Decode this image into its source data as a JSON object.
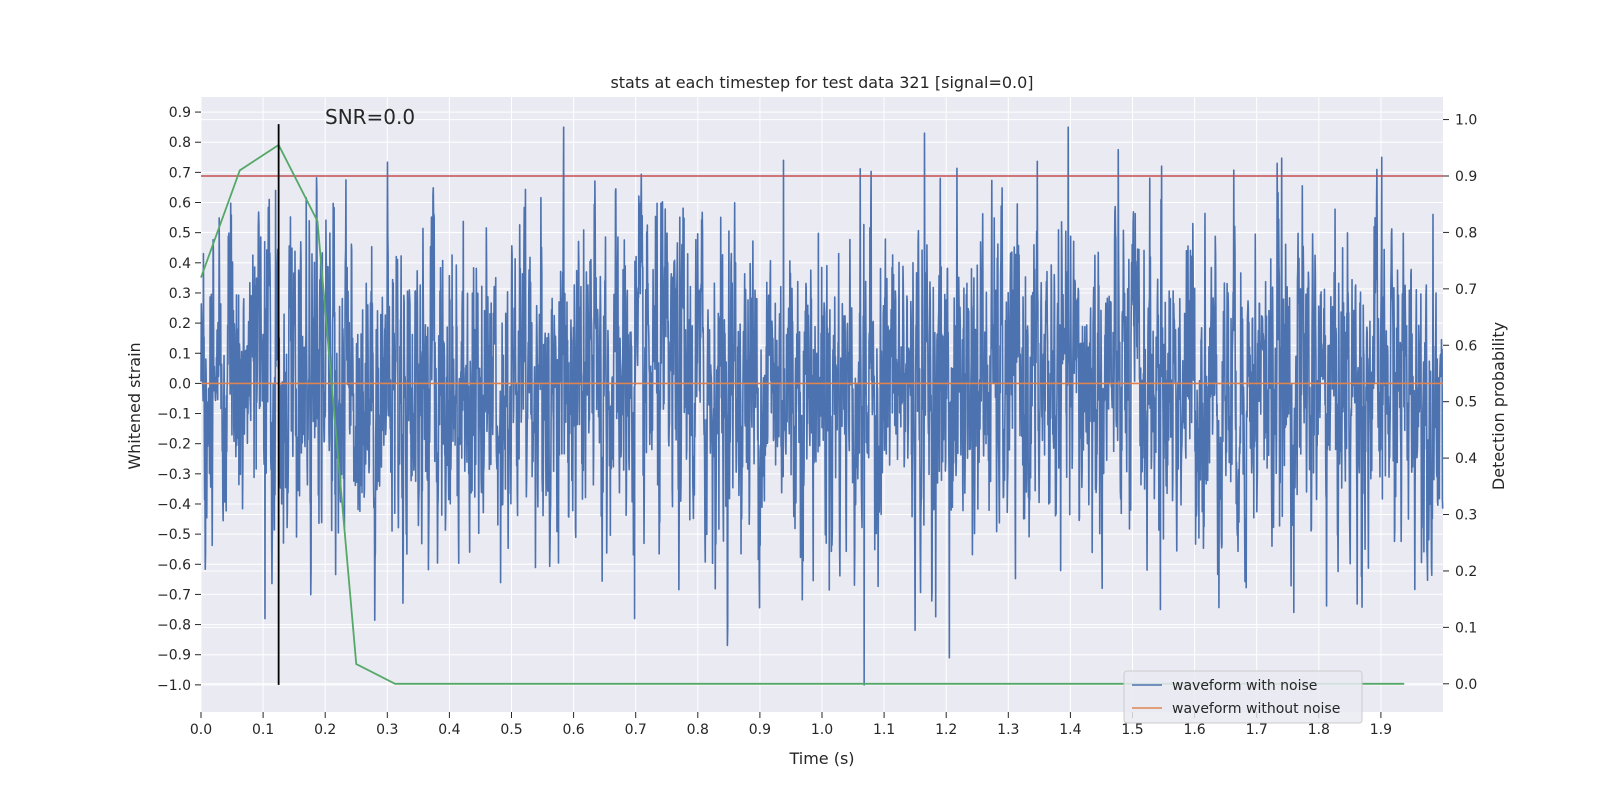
{
  "chart_data": {
    "type": "line",
    "title": "stats at each timestep for test data 321 [signal=0.0]",
    "xlabel": "Time (s)",
    "ylabel_left": "Whitened strain",
    "ylabel_right": "Detection probability",
    "annotation": "SNR=0.0",
    "xlim": [
      0.0,
      2.0
    ],
    "ylim_left": [
      -1.09,
      0.95
    ],
    "ylim_right": [
      -0.05,
      1.04
    ],
    "x_ticks": [
      0.0,
      0.1,
      0.2,
      0.3,
      0.4,
      0.5,
      0.6,
      0.7,
      0.8,
      0.9,
      1.0,
      1.1,
      1.2,
      1.3,
      1.4,
      1.5,
      1.6,
      1.7,
      1.8,
      1.9
    ],
    "x_tick_labels": [
      "0.0",
      "0.1",
      "0.2",
      "0.3",
      "0.4",
      "0.5",
      "0.6",
      "0.7",
      "0.8",
      "0.9",
      "1.0",
      "1.1",
      "1.2",
      "1.3",
      "1.4",
      "1.5",
      "1.6",
      "1.7",
      "1.8",
      "1.9"
    ],
    "y_left_ticks": [
      0.9,
      0.8,
      0.7,
      0.6,
      0.5,
      0.4,
      0.3,
      0.2,
      0.1,
      0.0,
      -0.1,
      -0.2,
      -0.3,
      -0.4,
      -0.5,
      -0.6,
      -0.7,
      -0.8,
      -0.9,
      -1.0
    ],
    "y_left_tick_labels": [
      "0.9",
      "0.8",
      "0.7",
      "0.6",
      "0.5",
      "0.4",
      "0.3",
      "0.2",
      "0.1",
      "0.0",
      "−0.1",
      "−0.2",
      "−0.3",
      "−0.4",
      "−0.5",
      "−0.6",
      "−0.7",
      "−0.8",
      "−0.9",
      "−1.0"
    ],
    "y_right_ticks": [
      1.0,
      0.9,
      0.8,
      0.7,
      0.6,
      0.5,
      0.4,
      0.3,
      0.2,
      0.1,
      0.0
    ],
    "y_right_tick_labels": [
      "1.0",
      "0.9",
      "0.8",
      "0.7",
      "0.6",
      "0.5",
      "0.4",
      "0.3",
      "0.2",
      "0.1",
      "0.0"
    ],
    "grid": true,
    "legend_position": "lower-right",
    "series": [
      {
        "name": "waveform with noise",
        "axis": "left",
        "color": "#4c72b0",
        "sample_rate_hz": 2048,
        "amplitude_range": [
          -1.0,
          0.85
        ],
        "peaks": [
          {
            "x": 0.584,
            "y": 0.85
          },
          {
            "x": 1.165,
            "y": 0.83
          },
          {
            "x": 0.938,
            "y": 0.74
          },
          {
            "x": 1.733,
            "y": 0.73
          },
          {
            "x": 0.12,
            "y": 0.64
          },
          {
            "x": 1.068,
            "y": -1.0
          },
          {
            "x": 1.205,
            "y": -0.91
          },
          {
            "x": 0.698,
            "y": -0.78
          },
          {
            "x": 0.103,
            "y": -0.78
          },
          {
            "x": 1.545,
            "y": -0.75
          }
        ]
      },
      {
        "name": "waveform without noise",
        "axis": "left",
        "color": "#dd8452",
        "x": [
          0.0,
          2.0
        ],
        "y": [
          0.0,
          0.0
        ]
      },
      {
        "axis": "right",
        "color": "#55a868",
        "x": [
          0.0,
          0.0625,
          0.125,
          0.1875,
          0.25,
          0.3125,
          0.375,
          0.4375,
          0.5,
          0.5625,
          0.625,
          0.6875,
          0.75,
          0.8125,
          0.875,
          0.9375,
          1.0,
          1.0625,
          1.125,
          1.1875,
          1.25,
          1.3125,
          1.375,
          1.4375,
          1.5,
          1.5625,
          1.625,
          1.6875,
          1.75,
          1.8125,
          1.875,
          1.9375
        ],
        "y": [
          0.72,
          0.91,
          0.955,
          0.82,
          0.035,
          0.0,
          0.0,
          0.0,
          0.0,
          0.0,
          0.0,
          0.0,
          0.0,
          0.0,
          0.0,
          0.0,
          0.0,
          0.0,
          0.0,
          0.0,
          0.0,
          0.0,
          0.0,
          0.0,
          0.0,
          0.0,
          0.0,
          0.0,
          0.0,
          0.0,
          0.0,
          0.0
        ]
      }
    ],
    "threshold_line": {
      "axis": "right",
      "y": 0.9,
      "color": "#c44e52"
    },
    "marker_line": {
      "axis": "left",
      "x": 0.125,
      "y_range": [
        -1.0,
        0.86
      ],
      "color": "#000000"
    }
  }
}
